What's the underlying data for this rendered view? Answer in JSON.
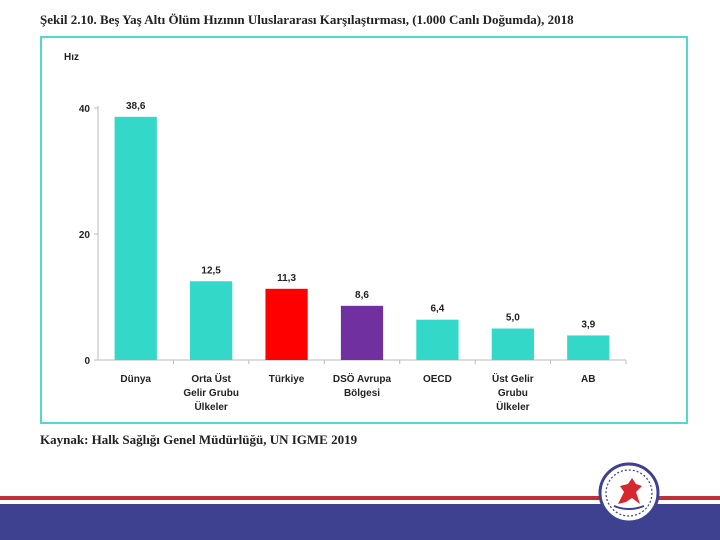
{
  "title": "Şekil 2.10. Beş Yaş Altı Ölüm Hızının Uluslararası Karşılaştırması, (1.000 Canlı Doğumda), 2018",
  "source": "Kaynak: Halk Sağlığı Genel Müdürlüğü, UN IGME 2019",
  "colors": {
    "frame": "#55d8cc",
    "footer_line": "#c0303a",
    "footer_band": "#3d4190",
    "logo_ring": "#3d4190",
    "logo_figure": "#d8262e"
  },
  "logo": {
    "icon": "university-seal-icon"
  },
  "chart_data": {
    "type": "bar",
    "ylabel": "Hız",
    "ylim": [
      0,
      40
    ],
    "yticks": [
      0,
      20,
      40
    ],
    "grid": false,
    "categories": [
      [
        "Dünya"
      ],
      [
        "Orta Üst",
        "Gelir Grubu",
        "Ülkeler"
      ],
      [
        "Türkiye"
      ],
      [
        "DSÖ Avrupa",
        "Bölgesi"
      ],
      [
        "OECD"
      ],
      [
        "Üst Gelir",
        "Grubu",
        "Ülkeler"
      ],
      [
        "AB"
      ]
    ],
    "values": [
      38.6,
      12.5,
      11.3,
      8.6,
      6.4,
      5.0,
      3.9
    ],
    "value_labels": [
      "38,6",
      "12,5",
      "11,3",
      "8,6",
      "6,4",
      "5,0",
      "3,9"
    ],
    "bar_colors": [
      "#33d8c8",
      "#33d8c8",
      "#ff0000",
      "#7030a0",
      "#33d8c8",
      "#33d8c8",
      "#33d8c8"
    ]
  }
}
